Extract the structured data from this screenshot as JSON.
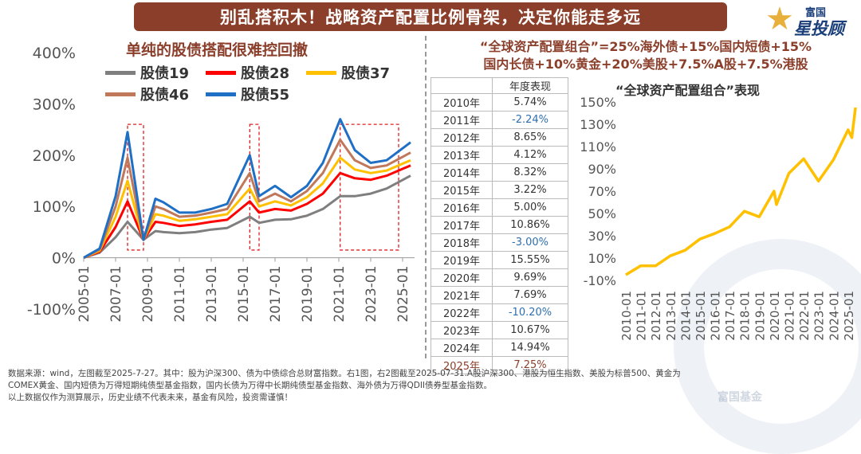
{
  "banner": {
    "title": "别乱搭积木！战略资产配置比例骨架，决定你能走多远"
  },
  "logo": {
    "small": "富国",
    "big": "星投顾"
  },
  "watermark": {
    "text": "富国基金"
  },
  "left_chart": {
    "title": "单纯的股债搭配很难控回撤",
    "legend": [
      {
        "name": "股债19",
        "color": "#7f7f7f"
      },
      {
        "name": "股债28",
        "color": "#ff0000"
      },
      {
        "name": "股债37",
        "color": "#ffc000"
      },
      {
        "name": "股债46",
        "color": "#c0785a"
      },
      {
        "name": "股债55",
        "color": "#1f6fc5"
      }
    ]
  },
  "middle": {
    "title_line1": "“全球资产配置组合”=25%海外债+15%国内短债+15%",
    "title_line2": "国内长债+10%黄金+20%美股+7.5%A股+7.5%港股",
    "table_header": "年度表现",
    "rows": [
      {
        "year": "2010年",
        "value": "5.74%"
      },
      {
        "year": "2011年",
        "value": "-2.24%"
      },
      {
        "year": "2012年",
        "value": "8.65%"
      },
      {
        "year": "2013年",
        "value": "4.12%"
      },
      {
        "year": "2014年",
        "value": "8.32%"
      },
      {
        "year": "2015年",
        "value": "3.22%"
      },
      {
        "year": "2016年",
        "value": "5.00%"
      },
      {
        "year": "2017年",
        "value": "10.86%"
      },
      {
        "year": "2018年",
        "value": "-3.00%"
      },
      {
        "year": "2019年",
        "value": "15.55%"
      },
      {
        "year": "2020年",
        "value": "9.69%"
      },
      {
        "year": "2021年",
        "value": "7.69%"
      },
      {
        "year": "2022年",
        "value": "-10.20%"
      },
      {
        "year": "2023年",
        "value": "10.67%"
      },
      {
        "year": "2024年",
        "value": "14.94%"
      },
      {
        "year": "2025年",
        "value": "7.25%"
      }
    ]
  },
  "right_chart": {
    "title": "“全球资产配置组合”表现"
  },
  "footnote": {
    "line1": "数据来源：wind，左图截至2025-7-27。其中：股为沪深300、债为中债综合总财富指数。右1图，右2图截至2025-07-31.A股沪深300、港股为恒生指数、美股为标普500、黄金为",
    "line2": "COMEX黄金、国内短债为万得短期纯债型基金指数，国内长债为万得中长期纯债型基金指数、海外债为万得QDII债券型基金指数。",
    "line3": "以上数据仅作为测算展示，历史业绩不代表未来，基金有风险，投资需谨慎！"
  },
  "chart_data": [
    {
      "type": "line",
      "ylim": [
        -100,
        400
      ],
      "y_ticks": [
        "400%",
        "300%",
        "200%",
        "100%",
        "0%",
        "-100%"
      ],
      "x_ticks": [
        "2005-01",
        "2007-01",
        "2009-01",
        "2011-01",
        "2013-01",
        "2015-01",
        "2017-01",
        "2019-01",
        "2021-01",
        "2023-01",
        "2025-01"
      ],
      "x": [
        "2005-01",
        "2006-01",
        "2007-01",
        "2007-10",
        "2008-10",
        "2009-07",
        "2010-01",
        "2011-01",
        "2012-01",
        "2013-01",
        "2014-01",
        "2015-06",
        "2016-01",
        "2017-01",
        "2018-01",
        "2019-01",
        "2020-01",
        "2021-02",
        "2022-01",
        "2023-01",
        "2024-01",
        "2025-07"
      ],
      "series": [
        {
          "name": "股债19",
          "color": "#7f7f7f",
          "values": [
            0,
            10,
            40,
            70,
            35,
            52,
            50,
            48,
            50,
            55,
            58,
            80,
            68,
            74,
            75,
            82,
            95,
            120,
            120,
            125,
            135,
            160
          ]
        },
        {
          "name": "股债28",
          "color": "#ff0000",
          "values": [
            0,
            12,
            60,
            110,
            35,
            70,
            68,
            62,
            65,
            70,
            74,
            110,
            88,
            95,
            92,
            105,
            125,
            165,
            155,
            152,
            160,
            180
          ]
        },
        {
          "name": "股债37",
          "color": "#ffc000",
          "values": [
            0,
            14,
            80,
            150,
            35,
            85,
            82,
            72,
            75,
            80,
            85,
            135,
            100,
            110,
            102,
            118,
            145,
            195,
            172,
            165,
            170,
            190
          ]
        },
        {
          "name": "股债46",
          "color": "#c0785a",
          "values": [
            0,
            16,
            100,
            195,
            35,
            100,
            95,
            80,
            82,
            88,
            95,
            165,
            110,
            125,
            110,
            130,
            165,
            230,
            190,
            175,
            180,
            205
          ]
        },
        {
          "name": "股债55",
          "color": "#1f6fc5",
          "values": [
            0,
            18,
            120,
            245,
            35,
            115,
            108,
            88,
            88,
            95,
            105,
            200,
            120,
            140,
            118,
            140,
            185,
            270,
            210,
            185,
            190,
            225
          ]
        }
      ],
      "highlight_periods": [
        [
          "2007-10",
          "2008-10"
        ],
        [
          "2015-06",
          "2016-01"
        ],
        [
          "2021-02",
          "2024-10"
        ]
      ]
    },
    {
      "type": "line",
      "ylim": [
        -10,
        150
      ],
      "y_ticks": [
        "150%",
        "130%",
        "110%",
        "90%",
        "70%",
        "50%",
        "30%",
        "10%",
        "-10%"
      ],
      "x_ticks": [
        "2010-01",
        "2011-01",
        "2012-01",
        "2013-01",
        "2014-01",
        "2015-01",
        "2016-01",
        "2017-01",
        "2018-01",
        "2019-01",
        "2020-01",
        "2021-01",
        "2022-01",
        "2023-01",
        "2024-01",
        "2025-01"
      ],
      "series": [
        {
          "name": "",
          "color": "#ffc000",
          "x": [
            "2010-01",
            "2011-01",
            "2012-01",
            "2013-01",
            "2014-01",
            "2015-01",
            "2016-01",
            "2017-01",
            "2018-01",
            "2019-01",
            "2020-01",
            "2020-03",
            "2021-01",
            "2022-01",
            "2023-01",
            "2024-01",
            "2025-01",
            "2025-04",
            "2025-07"
          ],
          "values": [
            -5,
            3,
            3,
            12,
            17,
            27,
            32,
            38,
            52,
            47,
            70,
            58,
            86,
            99,
            79,
            98,
            125,
            118,
            145
          ]
        }
      ]
    }
  ]
}
